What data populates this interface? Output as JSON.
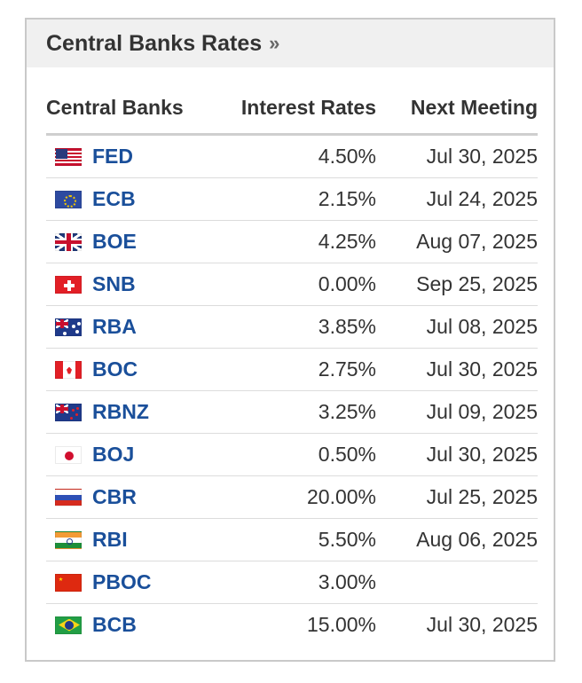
{
  "widget": {
    "title": "Central Banks Rates",
    "title_arrow": "»"
  },
  "table": {
    "headers": {
      "bank": "Central Banks",
      "rate": "Interest Rates",
      "meeting": "Next Meeting"
    },
    "rows": [
      {
        "bank": "FED",
        "flag": "us-flag-icon",
        "rate": "4.50%",
        "meeting": "Jul 30, 2025"
      },
      {
        "bank": "ECB",
        "flag": "eu-flag-icon",
        "rate": "2.15%",
        "meeting": "Jul 24, 2025"
      },
      {
        "bank": "BOE",
        "flag": "uk-flag-icon",
        "rate": "4.25%",
        "meeting": "Aug 07, 2025"
      },
      {
        "bank": "SNB",
        "flag": "switzerland-flag-icon",
        "rate": "0.00%",
        "meeting": "Sep 25, 2025"
      },
      {
        "bank": "RBA",
        "flag": "australia-flag-icon",
        "rate": "3.85%",
        "meeting": "Jul 08, 2025"
      },
      {
        "bank": "BOC",
        "flag": "canada-flag-icon",
        "rate": "2.75%",
        "meeting": "Jul 30, 2025"
      },
      {
        "bank": "RBNZ",
        "flag": "new-zealand-flag-icon",
        "rate": "3.25%",
        "meeting": "Jul 09, 2025"
      },
      {
        "bank": "BOJ",
        "flag": "japan-flag-icon",
        "rate": "0.50%",
        "meeting": "Jul 30, 2025"
      },
      {
        "bank": "CBR",
        "flag": "russia-flag-icon",
        "rate": "20.00%",
        "meeting": "Jul 25, 2025"
      },
      {
        "bank": "RBI",
        "flag": "india-flag-icon",
        "rate": "5.50%",
        "meeting": "Aug 06, 2025"
      },
      {
        "bank": "PBOC",
        "flag": "china-flag-icon",
        "rate": "3.00%",
        "meeting": ""
      },
      {
        "bank": "BCB",
        "flag": "brazil-flag-icon",
        "rate": "15.00%",
        "meeting": "Jul 30, 2025"
      }
    ]
  },
  "colors": {
    "link": "#1a4f9a",
    "header_bg": "#f0f0f0",
    "border": "#c9c9c9"
  }
}
